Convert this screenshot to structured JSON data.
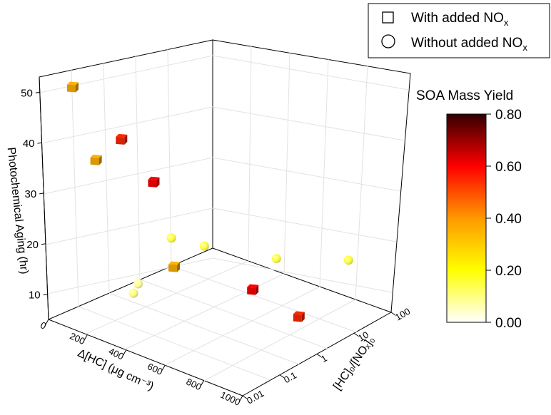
{
  "chart_data": {
    "type": "scatter3d",
    "z_axis": {
      "label": "Photochemical Aging (hr)",
      "ticks": [
        "10",
        "20",
        "30",
        "40",
        "50"
      ],
      "range": [
        5,
        53
      ]
    },
    "x_axis": {
      "label": "Δ[HC] (μg cm⁻³)",
      "ticks": [
        "0",
        "200",
        "400",
        "600",
        "800",
        "1000"
      ],
      "range": [
        0,
        1000
      ]
    },
    "y_axis": {
      "label": "[HC]₀/[NOₓ]₀",
      "ticks": [
        "0.01",
        "0.1",
        "1",
        "10",
        "100"
      ],
      "scale": "log",
      "range": [
        0.01,
        100
      ]
    },
    "legend": {
      "position": "top-right",
      "items": [
        {
          "symbol": "square",
          "label_main": "With added NO",
          "label_sub": "x"
        },
        {
          "symbol": "circle",
          "label_main": "Without added NO",
          "label_sub": "x"
        }
      ]
    },
    "colorbar": {
      "title": "SOA Mass Yield",
      "ticks": [
        "0.00",
        "0.20",
        "0.40",
        "0.60",
        "0.80"
      ],
      "range": [
        0,
        0.8
      ],
      "colors": [
        "#ffffff",
        "#ffff00",
        "#ff9900",
        "#ff0000",
        "#330000"
      ]
    },
    "series": [
      {
        "name": "With added NOx",
        "marker": "square",
        "points": [
          {
            "x": 60,
            "y": 0.02,
            "z": 52,
            "yield": 0.35
          },
          {
            "x": 180,
            "y": 0.02,
            "z": 39,
            "yield": 0.35
          },
          {
            "x": 120,
            "y": 0.2,
            "z": 38,
            "yield": 0.55
          },
          {
            "x": 210,
            "y": 0.5,
            "z": 29,
            "yield": 0.6
          },
          {
            "x": 200,
            "y": 2.0,
            "z": 9,
            "yield": 0.35
          },
          {
            "x": 720,
            "y": 0.5,
            "z": 15,
            "yield": 0.6
          },
          {
            "x": 900,
            "y": 1.0,
            "z": 11,
            "yield": 0.55
          }
        ]
      },
      {
        "name": "Without added NOx",
        "marker": "circle",
        "points": [
          {
            "x": 380,
            "y": 0.02,
            "z": 15,
            "yield": 0.1
          },
          {
            "x": 370,
            "y": 0.03,
            "z": 16,
            "yield": 0.08
          },
          {
            "x": 250,
            "y": 1.0,
            "z": 17,
            "yield": 0.15
          },
          {
            "x": 420,
            "y": 1.0,
            "z": 18,
            "yield": 0.15
          },
          {
            "x": 600,
            "y": 10,
            "z": 14,
            "yield": 0.15
          },
          {
            "x": 880,
            "y": 30,
            "z": 16,
            "yield": 0.15
          }
        ]
      }
    ]
  }
}
